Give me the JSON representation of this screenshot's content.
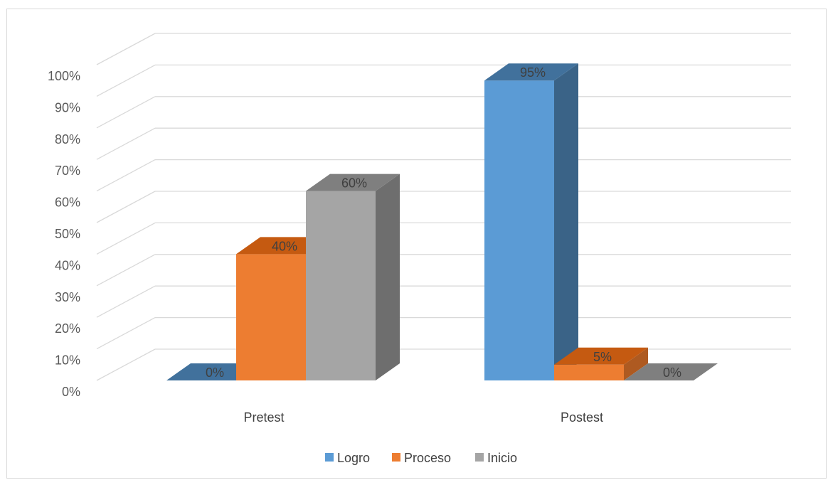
{
  "chart_data": {
    "type": "bar",
    "style": "3d-clustered-column",
    "categories": [
      "Pretest",
      "Postest"
    ],
    "series": [
      {
        "name": "Logro",
        "values": [
          0,
          95
        ],
        "color": "#5b9bd5",
        "side_color": "#3a6387",
        "top_color": "#41719c"
      },
      {
        "name": "Proceso",
        "values": [
          40,
          5
        ],
        "color": "#ed7d31",
        "side_color": "#ae5a21",
        "top_color": "#c55a11"
      },
      {
        "name": "Inicio",
        "values": [
          60,
          0
        ],
        "color": "#a5a5a5",
        "side_color": "#6e6e6e",
        "top_color": "#7f7f7f"
      }
    ],
    "value_labels": [
      [
        "0%",
        "95%"
      ],
      [
        "40%",
        "5%"
      ],
      [
        "60%",
        "0%"
      ]
    ],
    "yticks": [
      "0%",
      "10%",
      "20%",
      "30%",
      "40%",
      "50%",
      "60%",
      "70%",
      "80%",
      "90%",
      "100%"
    ],
    "ylim": [
      0,
      100
    ],
    "grid": true,
    "legend_position": "bottom",
    "title": "",
    "xlabel": "",
    "ylabel": ""
  }
}
